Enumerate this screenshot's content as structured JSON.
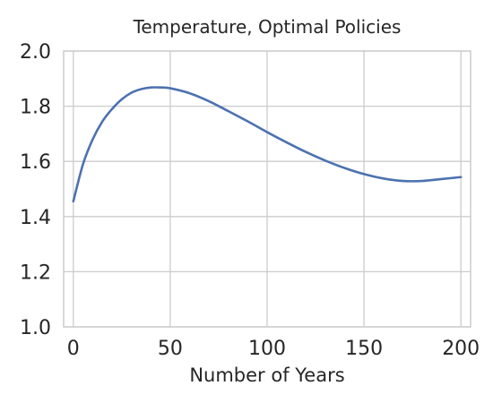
{
  "chart_data": {
    "type": "line",
    "title": "Temperature, Optimal Policies",
    "xlabel": "Number of Years",
    "ylabel": "",
    "xlim": [
      -5,
      205
    ],
    "ylim": [
      1.0,
      2.0
    ],
    "x_ticks": [
      0,
      50,
      100,
      150,
      200
    ],
    "x_tick_labels": [
      "0",
      "50",
      "100",
      "150",
      "200"
    ],
    "y_ticks": [
      1.0,
      1.2,
      1.4,
      1.6,
      1.8,
      2.0
    ],
    "y_tick_labels": [
      "1.0",
      "1.2",
      "1.4",
      "1.6",
      "1.8",
      "2.0"
    ],
    "grid": true,
    "legend": "none",
    "series": [
      {
        "color": "#4c72b0",
        "x": [
          0,
          5,
          10,
          15,
          20,
          25,
          30,
          35,
          40,
          45,
          50,
          60,
          70,
          80,
          90,
          100,
          110,
          120,
          130,
          140,
          150,
          160,
          170,
          180,
          190,
          200
        ],
        "y": [
          1.455,
          1.59,
          1.68,
          1.745,
          1.79,
          1.825,
          1.849,
          1.862,
          1.868,
          1.868,
          1.865,
          1.847,
          1.818,
          1.782,
          1.745,
          1.706,
          1.669,
          1.634,
          1.603,
          1.576,
          1.554,
          1.538,
          1.529,
          1.529,
          1.536,
          1.543
        ]
      }
    ]
  }
}
